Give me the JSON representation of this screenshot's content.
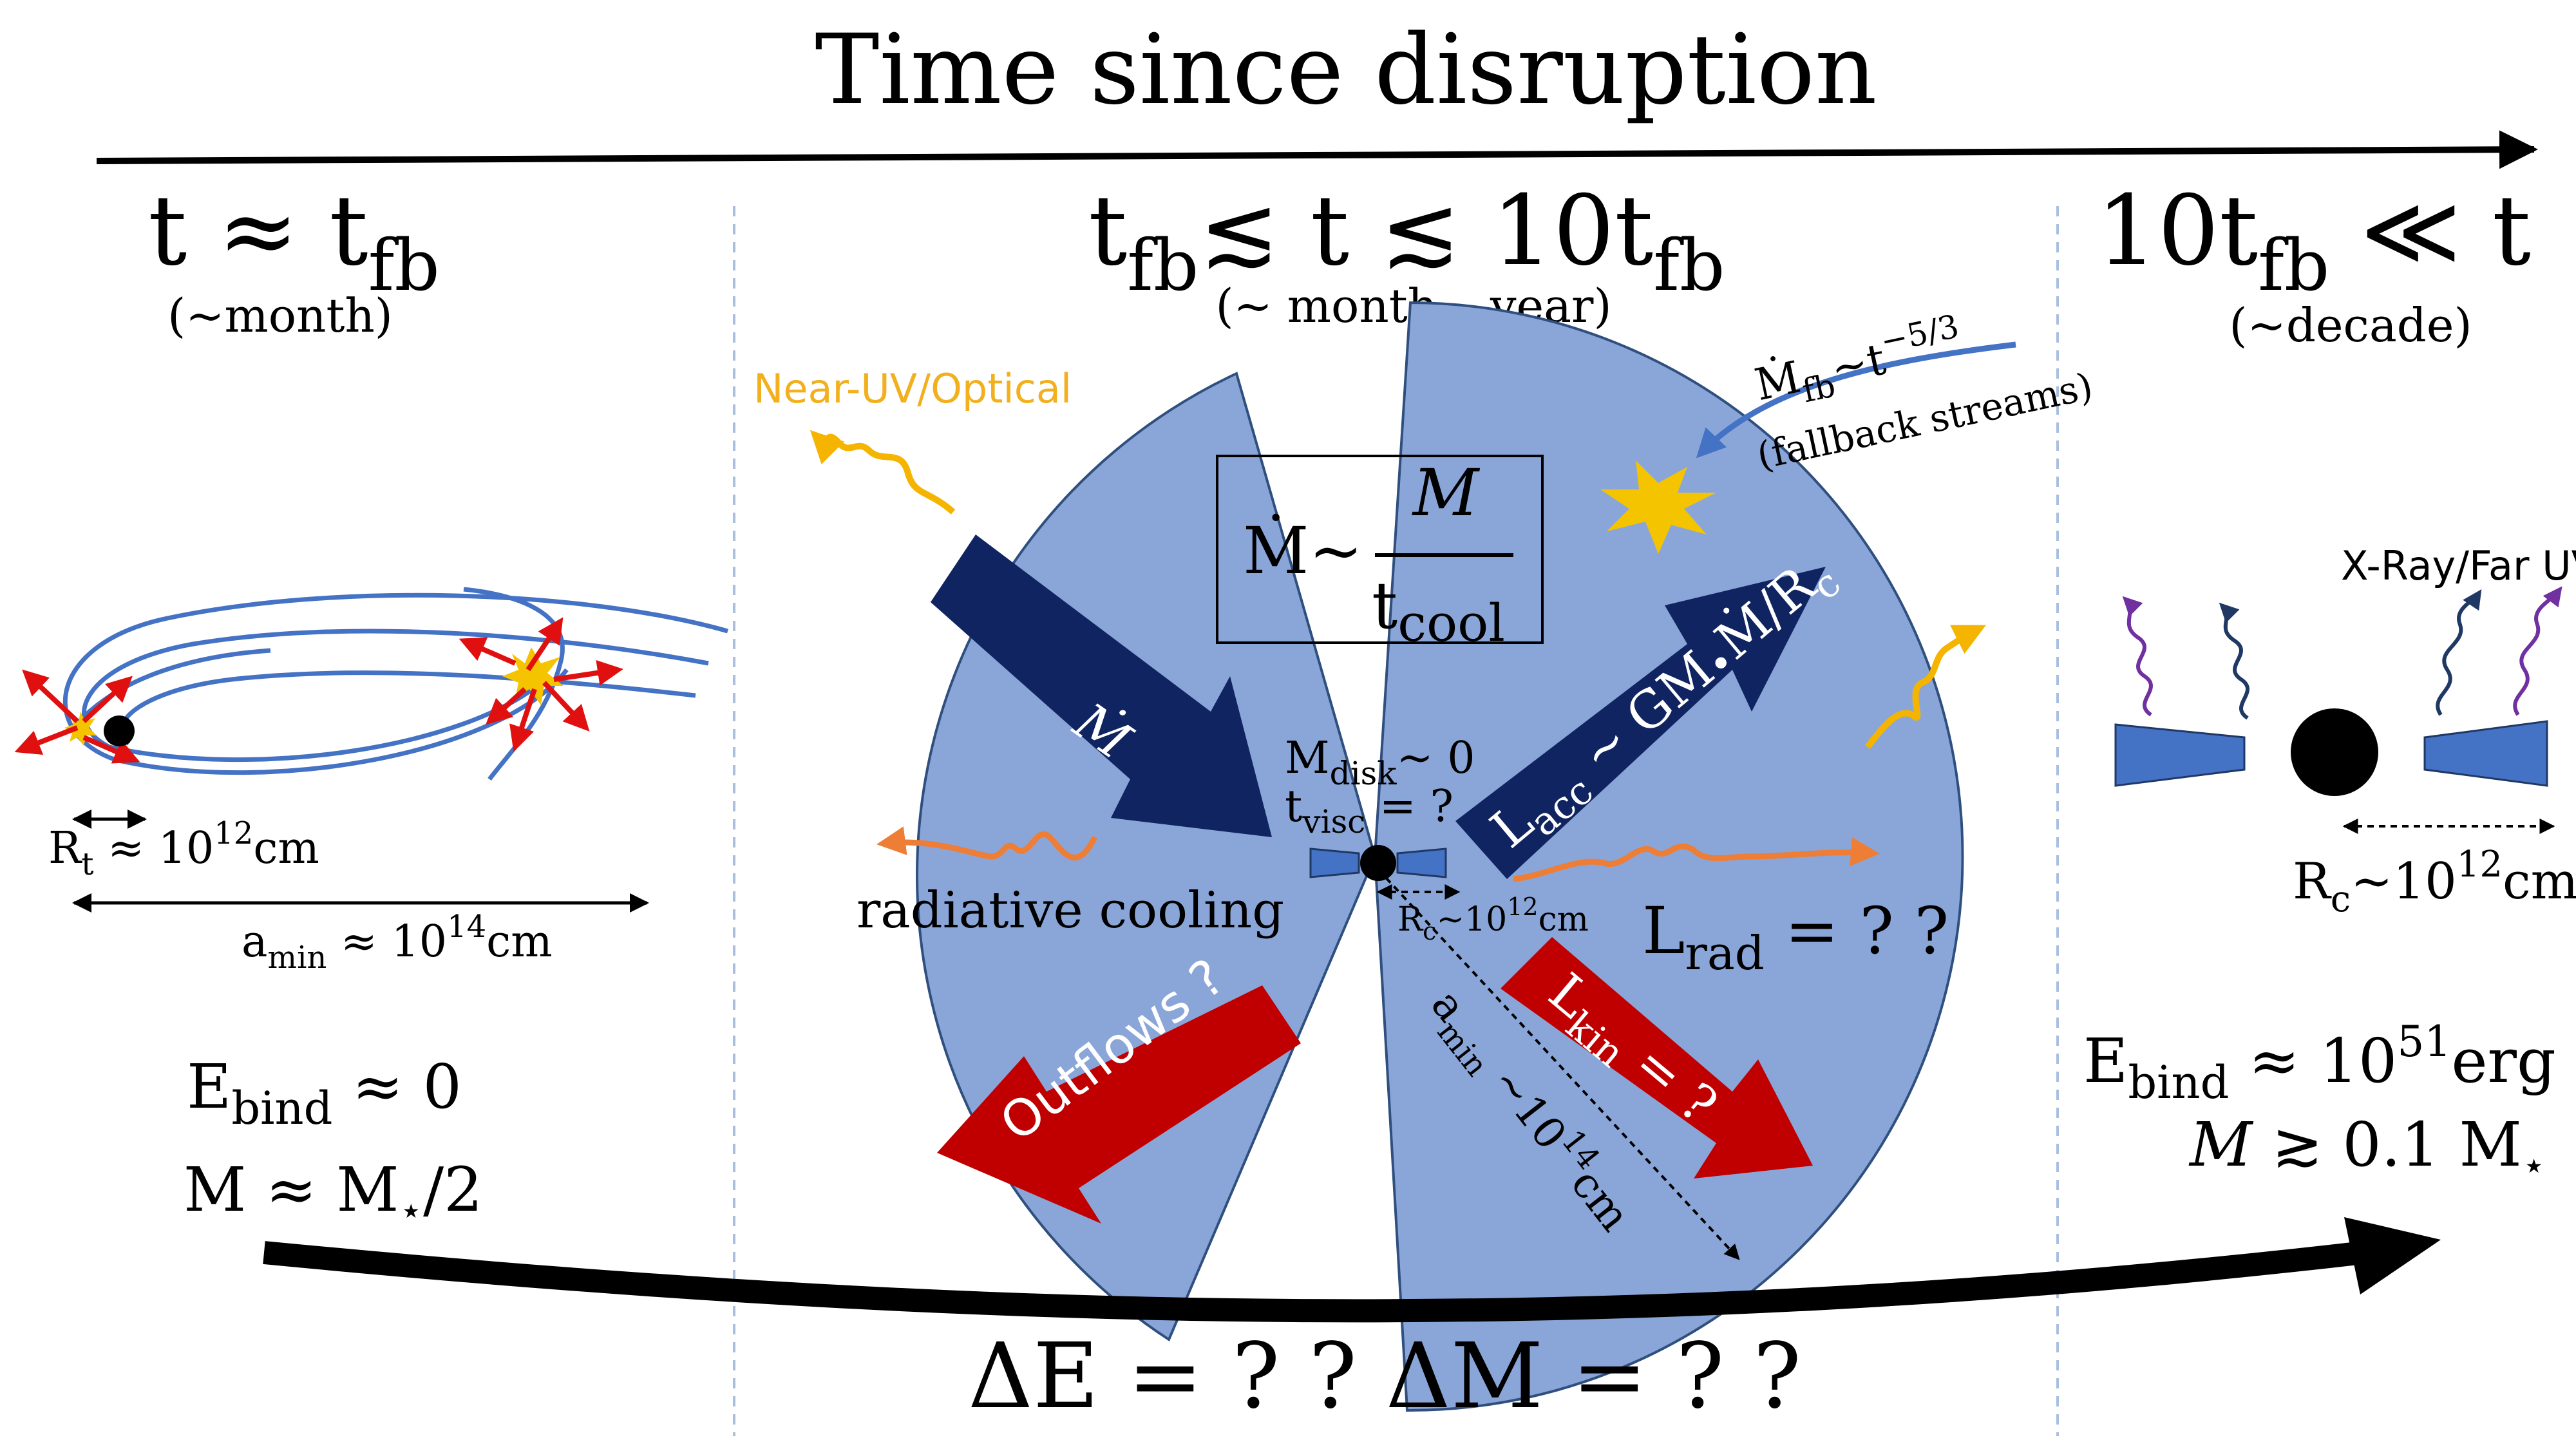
{
  "header": {
    "title": "Time since disruption"
  },
  "stages": {
    "early": {
      "time_main": "t ≈ t",
      "time_sub": "fb",
      "time_note": "(~month)",
      "tidal_radius": {
        "symbol": "R",
        "sub": "t",
        "rest": " ≈ 10",
        "exp": "12",
        "unit": "cm"
      },
      "semi_major": {
        "symbol": "a",
        "sub": "min",
        "rest": " ≈ 10",
        "exp": "14",
        "unit": "cm"
      },
      "energy": {
        "symbol": "E",
        "sub": "bind",
        "rest": "  ≈ 0"
      },
      "mass": {
        "text": "M  ≈ M",
        "sub": "⋆",
        "rest": "/2"
      }
    },
    "middle": {
      "time_a": "t",
      "time_a_sub": "fb",
      "time_b": "≲ t ≲ 10t",
      "time_b_sub": "fb",
      "time_note": "(~ month  – year)",
      "near_uv_label": "Near-UV/Optical",
      "mdot_box": {
        "numerator": "M",
        "lhs": "Ṁ~",
        "denominator": "t",
        "denominator_sub": "cool"
      },
      "fallback": {
        "lhs": "Ṁ",
        "lhs_sub": "fb",
        "rhs": "~t",
        "exp": "−5/3",
        "note": "(fallback streams)"
      },
      "inflow_label": "Ṁ",
      "disk_mass": {
        "symbol": "M",
        "sub": "disk",
        "rest": "~ 0"
      },
      "visc_time": {
        "symbol": "t",
        "sub": "visc",
        "rest": " = ?"
      },
      "lacc": {
        "symbol": "L",
        "sub": "acc",
        "rest": " ~ GM",
        "bullet": "•",
        "tail": "Ṁ/R",
        "tail_sub": "c"
      },
      "radiative_cooling": "radiative cooling",
      "circ_radius": {
        "symbol": "R",
        "sub": "c",
        "rest": "~10",
        "exp": "12",
        "unit": "cm"
      },
      "lrad": {
        "symbol": "L",
        "sub": "rad",
        "rest": " = ? ?"
      },
      "outflows": "Outflows ?",
      "lkin": {
        "symbol": "L",
        "sub": "kin",
        "rest": " = ?"
      },
      "amin": {
        "symbol": "a",
        "sub": "min",
        "rest": " ~10",
        "exp": "14",
        "unit": "cm"
      }
    },
    "late": {
      "time_main": "10t",
      "time_sub": "fb",
      "time_rest": " ≪ t",
      "time_note": "(~decade)",
      "xray_label": "X-Ray/Far UV",
      "circ_radius": {
        "symbol": "R",
        "sub": "c",
        "rest": "~10",
        "exp": "12",
        "unit": "cm"
      },
      "energy": {
        "symbol": "E",
        "sub": "bind",
        "rest": "  ≈ 10",
        "exp": "51",
        "unit": "erg"
      },
      "mass": {
        "lhs": "M",
        "rest": " ≳ 0.1 M",
        "sub": "⋆"
      }
    }
  },
  "footer": {
    "text": "ΔE = ? ?  ΔM = ? ?"
  },
  "colors": {
    "envelope": "#8aa6d9",
    "envelope_edge": "#2f4f7f",
    "navy_arrow": "#0f2460",
    "red_arrow": "#c00000",
    "wave_orange": "#ee7d35",
    "wave_yellow": "#f5b400",
    "stream_blue": "#4472c4",
    "near_uv_text": "#f2b01e",
    "xray_purple": "#7030a0",
    "xray_navy": "#1f3864"
  }
}
